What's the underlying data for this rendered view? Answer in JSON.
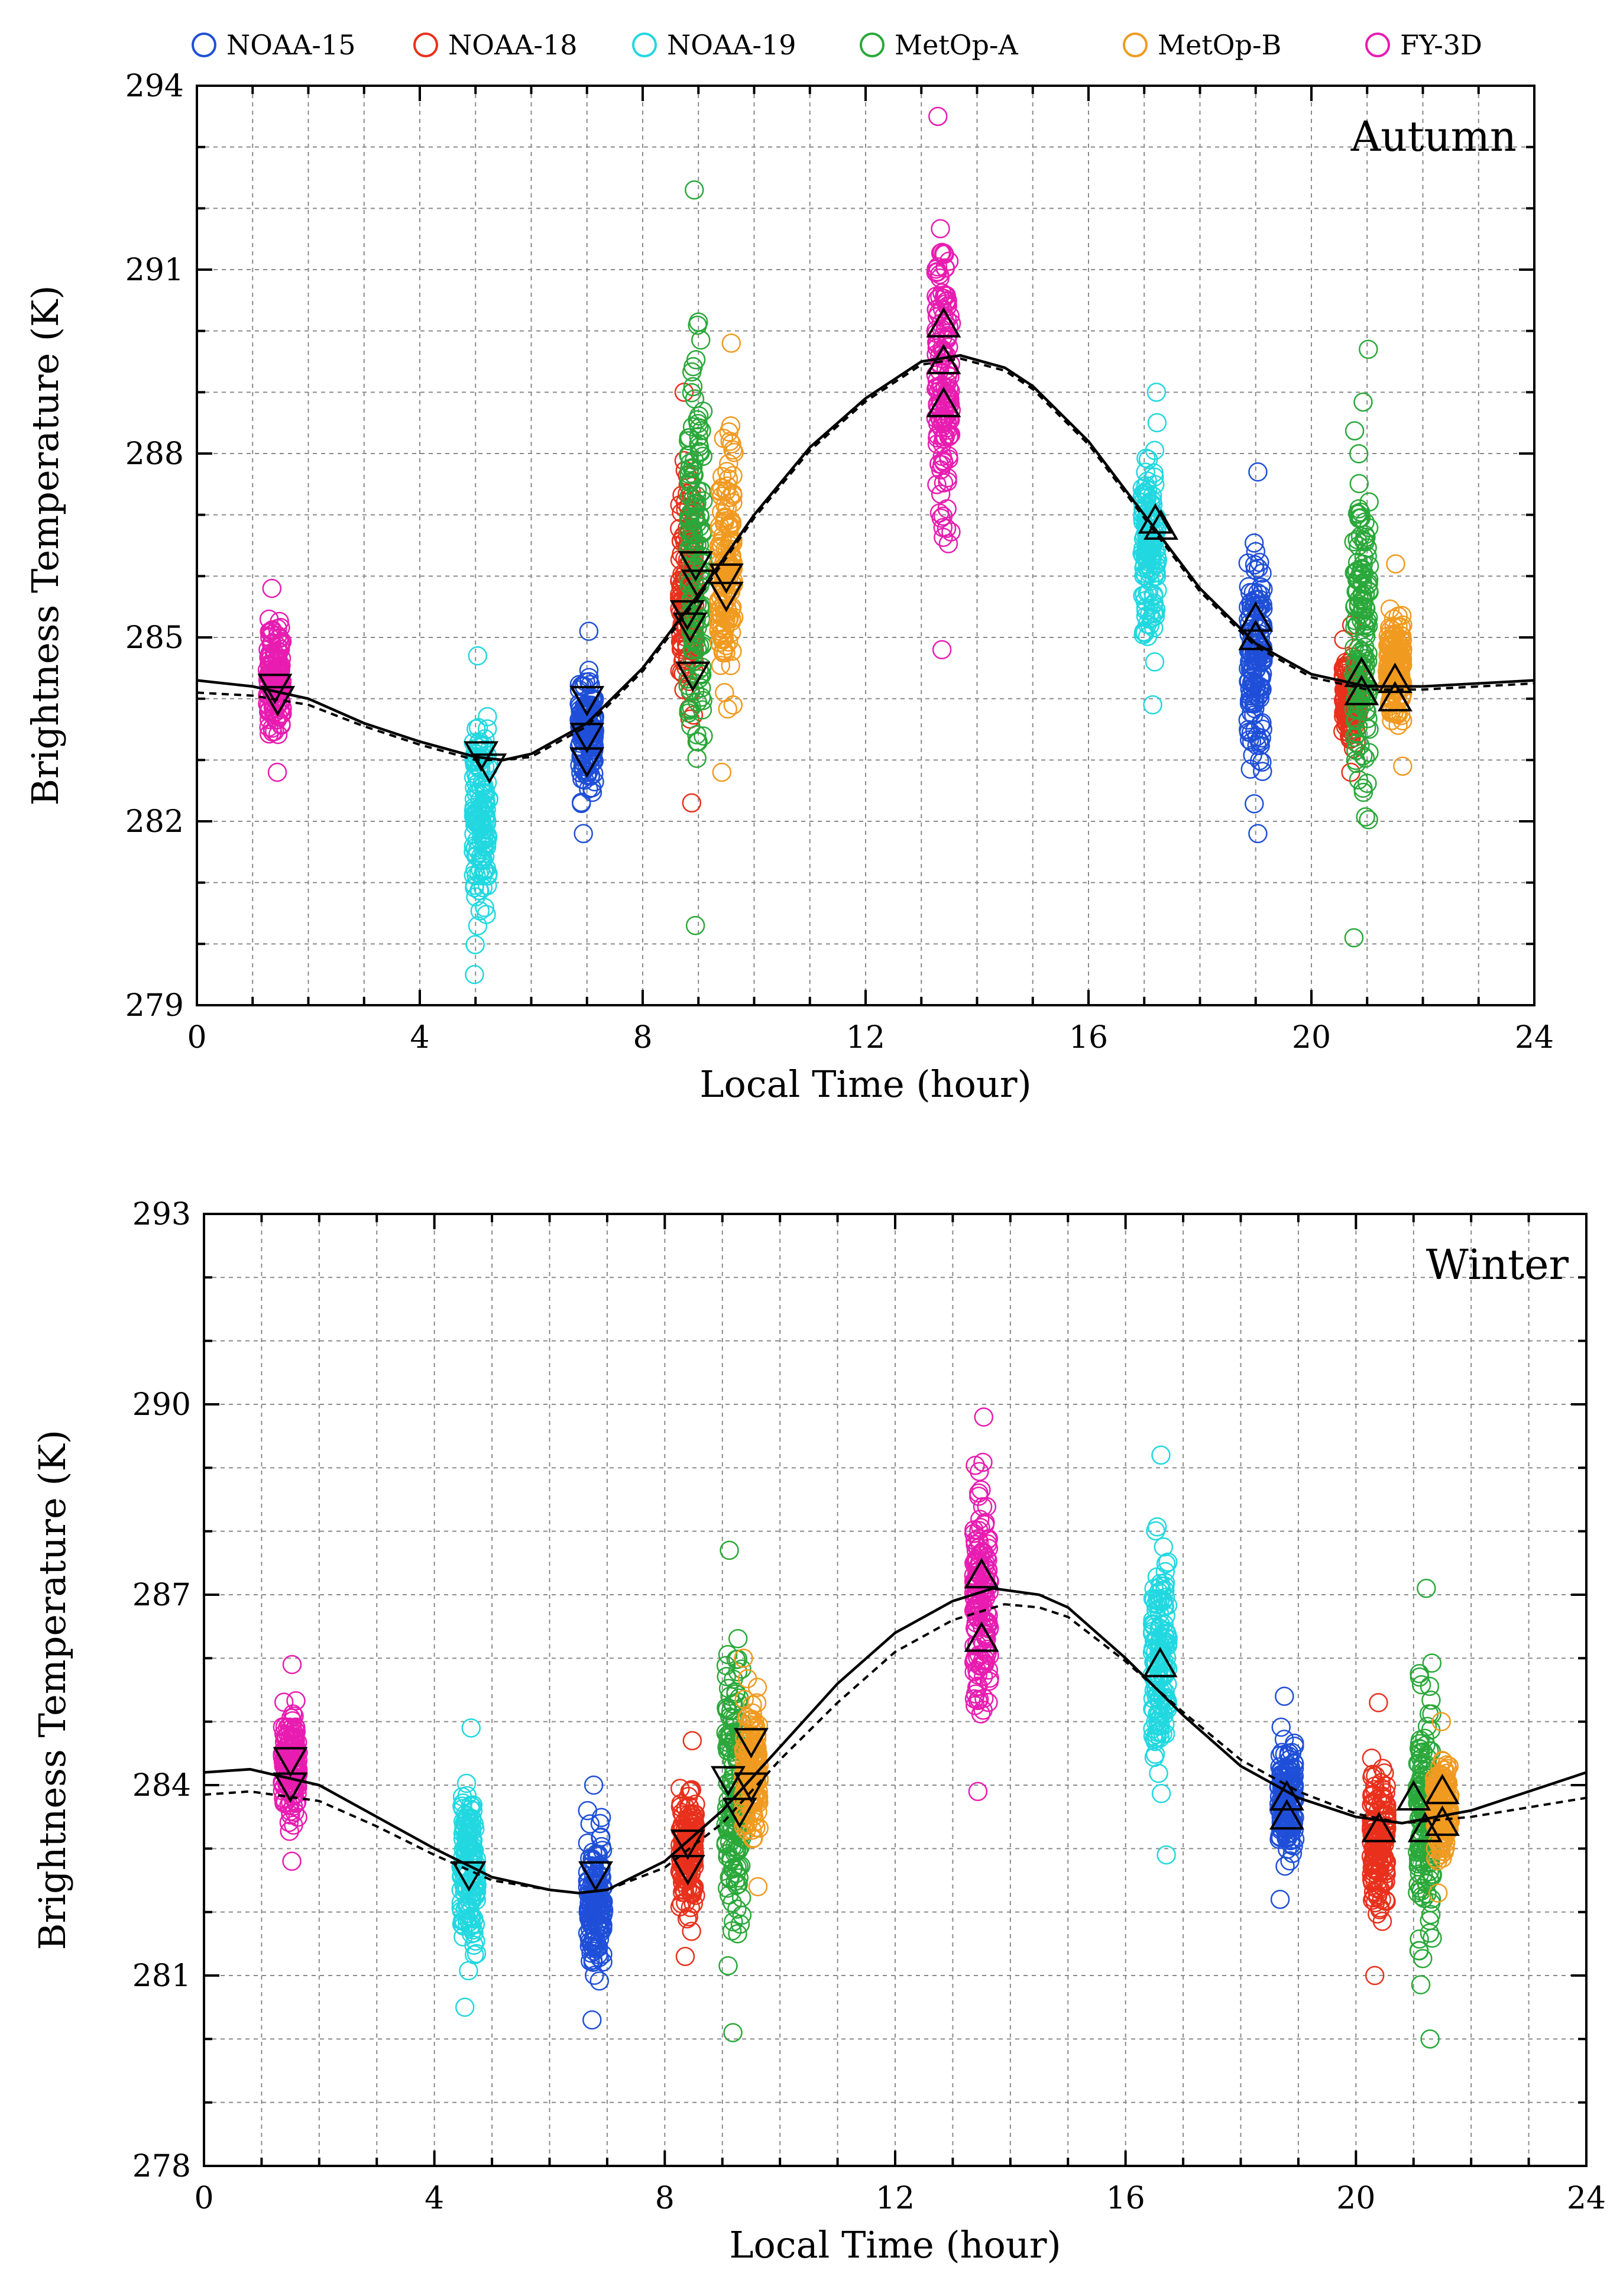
{
  "legend": [
    {
      "name": "NOAA-15",
      "color": "#1f4fd8"
    },
    {
      "name": "NOAA-18",
      "color": "#e8301c"
    },
    {
      "name": "NOAA-19",
      "color": "#22d8e0"
    },
    {
      "name": "MetOp-A",
      "color": "#2aa83a"
    },
    {
      "name": "MetOp-B",
      "color": "#f09a20"
    },
    {
      "name": "FY-3D",
      "color": "#e81cb0"
    }
  ],
  "chart_data": [
    {
      "type": "scatter",
      "title": "Autumn",
      "xlabel": "Local Time (hour)",
      "ylabel": "Brightness Temperature (K)",
      "xlim": [
        0,
        24
      ],
      "ylim": [
        279,
        294
      ],
      "xticks": [
        "0",
        "4",
        "8",
        "12",
        "16",
        "20",
        "24"
      ],
      "yticks": [
        "279",
        "282",
        "285",
        "288",
        "291",
        "294"
      ],
      "grid": true,
      "series": [
        {
          "name": "FY-3D",
          "color": "#e81cb0",
          "x": 1.4,
          "ymin": 282.8,
          "ymax": 285.8
        },
        {
          "name": "NOAA-19",
          "color": "#22d8e0",
          "x": 5.1,
          "ymin": 279.5,
          "ymax": 284.7
        },
        {
          "name": "NOAA-15",
          "color": "#1f4fd8",
          "x": 7.0,
          "ymin": 281.8,
          "ymax": 285.1
        },
        {
          "name": "NOAA-18",
          "color": "#e8301c",
          "x": 8.8,
          "ymin": 282.3,
          "ymax": 289.0
        },
        {
          "name": "MetOp-A",
          "color": "#2aa83a",
          "x": 8.95,
          "ymin": 280.3,
          "ymax": 292.3
        },
        {
          "name": "MetOp-B",
          "color": "#f09a20",
          "x": 9.5,
          "ymin": 282.8,
          "ymax": 289.8
        },
        {
          "name": "FY-3D",
          "color": "#e81cb0",
          "x": 13.4,
          "ymin": 284.8,
          "ymax": 293.5
        },
        {
          "name": "NOAA-19",
          "color": "#22d8e0",
          "x": 17.1,
          "ymin": 283.9,
          "ymax": 289.0
        },
        {
          "name": "NOAA-15",
          "color": "#1f4fd8",
          "x": 19.0,
          "ymin": 281.8,
          "ymax": 287.7
        },
        {
          "name": "NOAA-18",
          "color": "#e8301c",
          "x": 20.7,
          "ymin": 282.8,
          "ymax": 285.2
        },
        {
          "name": "MetOp-A",
          "color": "#2aa83a",
          "x": 20.9,
          "ymin": 280.1,
          "ymax": 289.7
        },
        {
          "name": "MetOp-B",
          "color": "#f09a20",
          "x": 21.5,
          "ymin": 282.9,
          "ymax": 286.2
        }
      ],
      "triangles_up": [
        [
          13.4,
          290.1
        ],
        [
          13.4,
          289.5
        ],
        [
          13.4,
          288.8
        ],
        [
          17.2,
          286.9
        ],
        [
          17.3,
          286.8
        ],
        [
          19.0,
          285.3
        ],
        [
          19.0,
          285.0
        ],
        [
          20.9,
          284.4
        ],
        [
          20.9,
          284.1
        ],
        [
          21.5,
          284.3
        ],
        [
          21.5,
          284.0
        ]
      ],
      "triangles_down": [
        [
          1.4,
          284.2
        ],
        [
          1.45,
          284.0
        ],
        [
          5.1,
          283.1
        ],
        [
          5.25,
          282.9
        ],
        [
          7.0,
          284.0
        ],
        [
          7.0,
          283.4
        ],
        [
          7.0,
          283.0
        ],
        [
          8.8,
          285.4
        ],
        [
          8.85,
          285.2
        ],
        [
          8.9,
          284.4
        ],
        [
          8.95,
          286.2
        ],
        [
          9.0,
          285.9
        ],
        [
          9.5,
          286.0
        ],
        [
          9.5,
          285.7
        ]
      ],
      "fit_solid": {
        "x": [
          0,
          1,
          2,
          3,
          4,
          5,
          5.5,
          6,
          7,
          8,
          9,
          10,
          11,
          12,
          13,
          13.7,
          14.5,
          15,
          16,
          17,
          18,
          19,
          20,
          21,
          22,
          23,
          24
        ],
        "y": [
          284.3,
          284.2,
          284.0,
          283.6,
          283.3,
          283.05,
          283.0,
          283.1,
          283.6,
          284.5,
          285.7,
          287.0,
          288.1,
          288.9,
          289.5,
          289.6,
          289.4,
          289.1,
          288.2,
          287.0,
          285.8,
          284.9,
          284.4,
          284.2,
          284.2,
          284.25,
          284.3
        ]
      },
      "fit_dashed": {
        "x": [
          0,
          1,
          2,
          3,
          4,
          5,
          5.5,
          6,
          7,
          8,
          9,
          10,
          11,
          12,
          13,
          13.7,
          14.5,
          15,
          16,
          17,
          18,
          19,
          20,
          21,
          22,
          23,
          24
        ],
        "y": [
          284.1,
          284.05,
          283.9,
          283.55,
          283.25,
          283.0,
          283.0,
          283.05,
          283.55,
          284.45,
          285.65,
          286.95,
          288.05,
          288.85,
          289.45,
          289.55,
          289.35,
          289.05,
          288.15,
          286.95,
          285.75,
          284.85,
          284.35,
          284.15,
          284.15,
          284.2,
          284.25
        ]
      }
    },
    {
      "type": "scatter",
      "title": "Winter",
      "xlabel": "Local Time (hour)",
      "ylabel": "Brightness Temperature (K)",
      "xlim": [
        0,
        24
      ],
      "ylim": [
        278,
        293
      ],
      "xticks": [
        "0",
        "4",
        "8",
        "12",
        "16",
        "20",
        "24"
      ],
      "yticks": [
        "278",
        "281",
        "284",
        "287",
        "290",
        "293"
      ],
      "grid": true,
      "series": [
        {
          "name": "FY-3D",
          "color": "#e81cb0",
          "x": 1.5,
          "ymin": 282.8,
          "ymax": 285.9
        },
        {
          "name": "NOAA-19",
          "color": "#22d8e0",
          "x": 4.6,
          "ymin": 280.5,
          "ymax": 284.9
        },
        {
          "name": "NOAA-15",
          "color": "#1f4fd8",
          "x": 6.8,
          "ymin": 280.3,
          "ymax": 284.0
        },
        {
          "name": "NOAA-18",
          "color": "#e8301c",
          "x": 8.4,
          "ymin": 281.3,
          "ymax": 284.7
        },
        {
          "name": "MetOp-A",
          "color": "#2aa83a",
          "x": 9.2,
          "ymin": 280.1,
          "ymax": 287.7
        },
        {
          "name": "MetOp-B",
          "color": "#f09a20",
          "x": 9.5,
          "ymin": 282.4,
          "ymax": 286.0
        },
        {
          "name": "FY-3D",
          "color": "#e81cb0",
          "x": 13.5,
          "ymin": 283.9,
          "ymax": 289.8
        },
        {
          "name": "NOAA-19",
          "color": "#22d8e0",
          "x": 16.6,
          "ymin": 282.9,
          "ymax": 289.2
        },
        {
          "name": "NOAA-15",
          "color": "#1f4fd8",
          "x": 18.8,
          "ymin": 282.2,
          "ymax": 285.4
        },
        {
          "name": "NOAA-18",
          "color": "#e8301c",
          "x": 20.4,
          "ymin": 281.0,
          "ymax": 285.3
        },
        {
          "name": "MetOp-A",
          "color": "#2aa83a",
          "x": 21.2,
          "ymin": 280.0,
          "ymax": 287.1
        },
        {
          "name": "MetOp-B",
          "color": "#f09a20",
          "x": 21.5,
          "ymin": 282.3,
          "ymax": 285.0
        }
      ],
      "triangles_up": [
        [
          13.5,
          287.3
        ],
        [
          13.5,
          286.3
        ],
        [
          16.6,
          285.9
        ],
        [
          18.8,
          283.8
        ],
        [
          18.8,
          283.5
        ],
        [
          20.4,
          283.3
        ],
        [
          21.0,
          283.8
        ],
        [
          21.2,
          283.3
        ],
        [
          21.5,
          283.9
        ],
        [
          21.5,
          283.4
        ]
      ],
      "triangles_down": [
        [
          1.5,
          284.4
        ],
        [
          1.5,
          284.0
        ],
        [
          4.6,
          282.6
        ],
        [
          6.8,
          282.6
        ],
        [
          8.4,
          283.1
        ],
        [
          8.4,
          282.7
        ],
        [
          9.1,
          284.1
        ],
        [
          9.3,
          283.6
        ],
        [
          9.5,
          284.7
        ],
        [
          9.5,
          284.0
        ]
      ],
      "fit_solid": {
        "x": [
          0,
          0.8,
          2,
          3,
          4,
          5,
          6,
          6.5,
          7,
          8,
          9,
          10,
          11,
          12,
          13,
          13.7,
          14.5,
          15,
          16,
          17,
          18,
          19,
          20,
          20.8,
          22,
          23,
          24
        ],
        "y": [
          284.2,
          284.25,
          284.0,
          283.5,
          283.0,
          282.55,
          282.35,
          282.3,
          282.35,
          282.8,
          283.6,
          284.6,
          285.6,
          286.4,
          286.9,
          287.1,
          287.0,
          286.8,
          286.0,
          285.1,
          284.3,
          283.8,
          283.5,
          283.4,
          283.6,
          283.9,
          284.2
        ]
      },
      "fit_dashed": {
        "x": [
          0,
          0.8,
          2,
          3,
          4,
          5,
          6,
          6.5,
          7,
          8,
          9,
          10,
          11,
          12,
          13,
          13.9,
          14.5,
          15,
          16,
          17,
          18,
          19,
          20,
          20.8,
          22,
          23,
          24
        ],
        "y": [
          283.85,
          283.9,
          283.75,
          283.35,
          282.9,
          282.5,
          282.35,
          282.3,
          282.35,
          282.7,
          283.4,
          284.4,
          285.3,
          286.1,
          286.6,
          286.85,
          286.8,
          286.65,
          285.95,
          285.15,
          284.4,
          283.9,
          283.55,
          283.4,
          283.5,
          283.65,
          283.8
        ]
      }
    }
  ]
}
